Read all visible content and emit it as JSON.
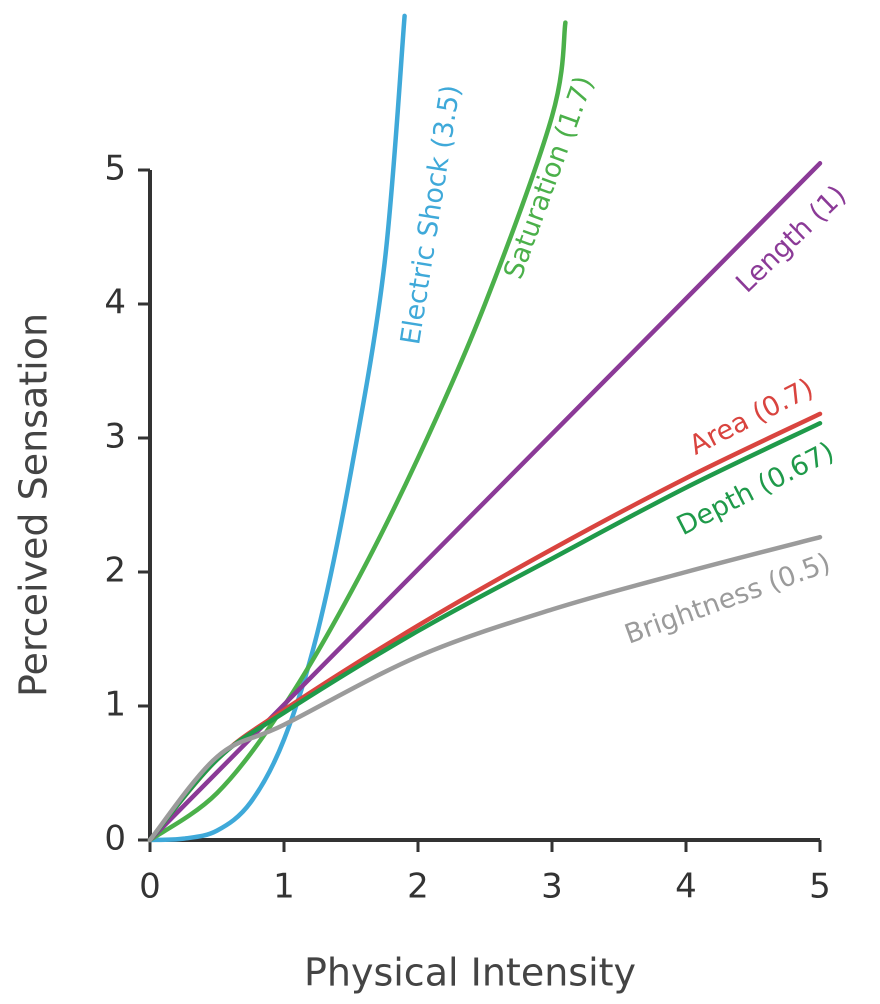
{
  "chart_data": {
    "type": "line",
    "x_label": "Physical Intensity",
    "y_label": "Perceived Sensation",
    "xlim": [
      0,
      5
    ],
    "ylim": [
      0,
      5
    ],
    "xticks": [
      0,
      1,
      2,
      3,
      4,
      5
    ],
    "yticks": [
      0,
      1,
      2,
      3,
      4,
      5
    ],
    "grid": false,
    "series": [
      {
        "name": "Electric Shock (3.5)",
        "color": "#3fa9d9",
        "x": [
          0,
          0.25,
          0.5,
          0.75,
          1,
          1.25,
          1.5,
          1.75,
          1.9
        ],
        "values": [
          0,
          0.01,
          0.07,
          0.28,
          0.75,
          1.55,
          2.75,
          4.3,
          6.15
        ]
      },
      {
        "name": "Saturation (1.7)",
        "color": "#4bb04a",
        "x": [
          0,
          0.5,
          1,
          1.5,
          2,
          2.5,
          3,
          3.1
        ],
        "values": [
          0,
          0.35,
          1,
          1.85,
          2.85,
          4.0,
          5.4,
          6.1
        ]
      },
      {
        "name": "Length (1)",
        "color": "#8b3a97",
        "x": [
          0,
          5
        ],
        "values": [
          0,
          5.05
        ]
      },
      {
        "name": "Area (0.7)",
        "color": "#d9443f",
        "x": [
          0,
          0.5,
          1,
          2,
          3,
          4,
          5
        ],
        "values": [
          0,
          0.6,
          0.97,
          1.6,
          2.17,
          2.7,
          3.18
        ]
      },
      {
        "name": "Depth (0.67)",
        "color": "#1f9a4a",
        "x": [
          0,
          0.5,
          1,
          2,
          3,
          4,
          5
        ],
        "values": [
          0,
          0.6,
          0.95,
          1.56,
          2.1,
          2.63,
          3.11
        ]
      },
      {
        "name": "Brightness (0.5)",
        "color": "#9b9b9b",
        "x": [
          0,
          0.5,
          1,
          2,
          3,
          4,
          5
        ],
        "values": [
          0,
          0.62,
          0.86,
          1.37,
          1.72,
          2.0,
          2.26
        ]
      }
    ]
  }
}
